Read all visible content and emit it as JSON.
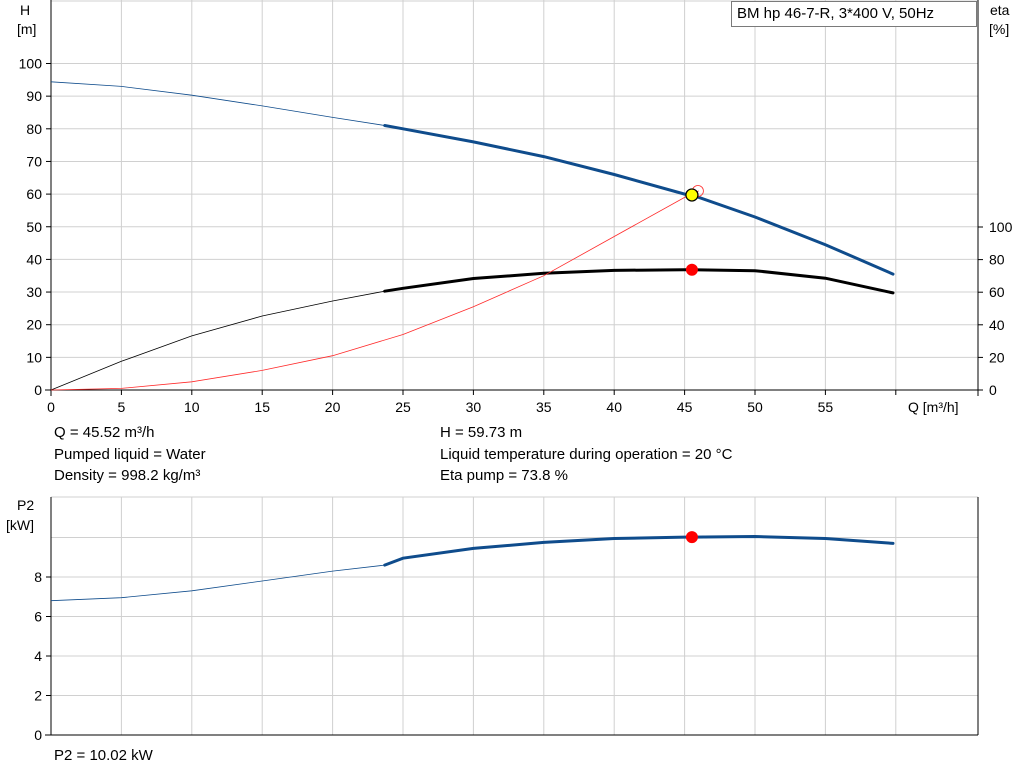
{
  "legend": {
    "pump": "BM hp 46-7-R, 3*400 V, 50Hz"
  },
  "info": {
    "q": "Q = 45.52 m³/h",
    "liquid": "Pumped liquid = Water",
    "density": "Density = 998.2 kg/m³",
    "h": "H = 59.73 m",
    "temp": "Liquid temperature during operation = 20 °C",
    "eta": "Eta pump = 73.8 %",
    "p2": "P2 = 10.02 kW"
  },
  "colors": {
    "head": "#0f4c8c",
    "eta": "#000000",
    "npsh": "#ff2a2a",
    "point_fill": "#ffff00",
    "duty_point": "#ff0000",
    "grid": "#d0d0d0"
  },
  "chart_data": [
    {
      "type": "line",
      "title": "",
      "xlabel": "Q [m³/h]",
      "ylabel_left": "H\n[m]",
      "ylabel_right": "eta\n[%]",
      "xlim": [
        0,
        65
      ],
      "ylim": [
        0,
        100
      ],
      "yright_ticks": [
        0,
        20,
        40,
        60,
        80,
        100
      ],
      "x_ticks": [
        0,
        5,
        10,
        15,
        20,
        25,
        30,
        35,
        40,
        45,
        50,
        55
      ],
      "y_ticks": [
        0,
        10,
        20,
        30,
        40,
        50,
        60,
        70,
        80,
        90,
        100
      ],
      "grid": true,
      "series": [
        {
          "name": "",
          "axis": "left",
          "x": [
            0,
            5,
            10,
            15,
            20,
            23.7,
            25,
            30,
            35,
            40,
            45,
            45.52,
            50,
            55,
            59.8
          ],
          "y": [
            94.4,
            93.0,
            90.3,
            87.0,
            83.5,
            81.0,
            80.0,
            76.0,
            71.5,
            66.0,
            60.0,
            59.73,
            53.0,
            44.5,
            35.5
          ],
          "bold_from": 23.7
        },
        {
          "name": "",
          "axis": "right",
          "x": [
            0,
            5,
            10,
            15,
            20,
            23.7,
            25,
            30,
            35,
            40,
            45,
            45.52,
            50,
            55,
            59.8
          ],
          "y": [
            0,
            17.6,
            33.2,
            45.4,
            54.6,
            60.6,
            62.4,
            68.4,
            71.6,
            73.4,
            73.8,
            73.8,
            73.2,
            68.6,
            59.6
          ],
          "bold_from": 23.7
        },
        {
          "name": "",
          "axis": "left",
          "x": [
            0,
            5,
            10,
            15,
            20,
            25,
            30,
            35,
            40,
            45,
            45.52,
            46
          ],
          "y": [
            0,
            0.5,
            2.5,
            6.0,
            10.5,
            17.0,
            25.5,
            35.0,
            47.0,
            59.0,
            59.73,
            61.0
          ],
          "bold_from": null
        }
      ],
      "duty_point": {
        "x": 45.52,
        "h": 59.73,
        "eta": 73.8
      }
    },
    {
      "type": "line",
      "title": "",
      "xlabel": "",
      "ylabel": "P2\n[kW]",
      "xlim": [
        0,
        65
      ],
      "ylim": [
        0,
        10
      ],
      "y_ticks": [
        0,
        2,
        4,
        6,
        8
      ],
      "grid": true,
      "series": [
        {
          "name": "",
          "x": [
            0,
            5,
            10,
            15,
            20,
            23.7,
            25,
            30,
            35,
            40,
            45,
            45.52,
            50,
            55,
            59.8
          ],
          "y": [
            6.8,
            6.95,
            7.3,
            7.8,
            8.3,
            8.6,
            8.95,
            9.45,
            9.75,
            9.95,
            10.02,
            10.02,
            10.05,
            9.95,
            9.7
          ],
          "bold_from": 23.7
        }
      ],
      "duty_point": {
        "x": 45.52,
        "p2": 10.02
      }
    }
  ]
}
